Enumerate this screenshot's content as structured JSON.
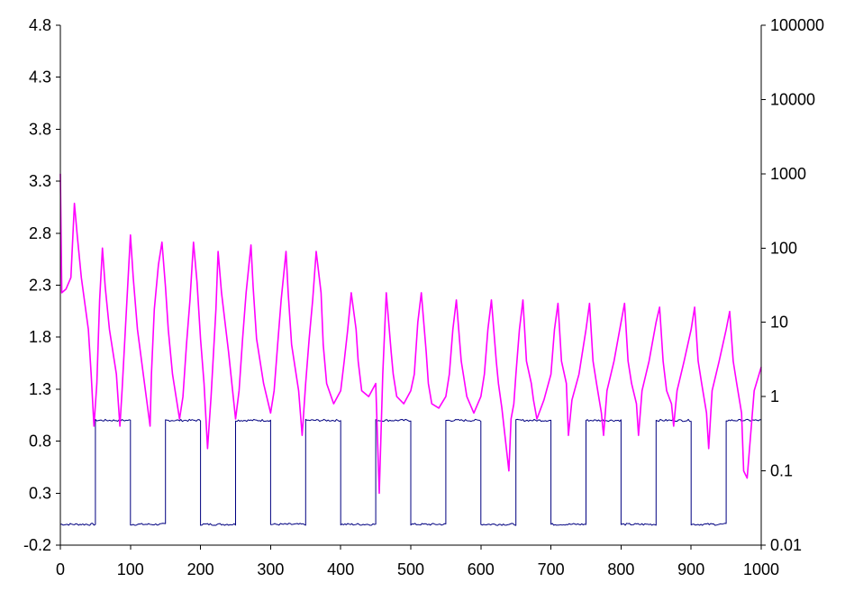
{
  "chart_data": {
    "type": "line",
    "title": "",
    "xlabel": "",
    "ylabel": "",
    "y2label": "",
    "grid": false,
    "legend": "none",
    "x_ticks": [
      "0",
      "100",
      "200",
      "300",
      "400",
      "500",
      "600",
      "700",
      "800",
      "900",
      "1000"
    ],
    "y_left_ticks": [
      "4.8",
      "4.3",
      "3.8",
      "3.3",
      "2.8",
      "2.3",
      "1.8",
      "1.3",
      "0.8",
      "0.3",
      "-0.2"
    ],
    "y_right_ticks": [
      "100000",
      "10000",
      "1000",
      "100",
      "10",
      "1",
      "0.1",
      "0.01"
    ],
    "xlim": [
      0,
      1000
    ],
    "ylim": [
      -0.2,
      4.8
    ],
    "y2lim": [
      0.01,
      100000
    ],
    "y2scale": "log",
    "series": [
      {
        "axis": "left",
        "color": "#000080",
        "style": "square-wave",
        "low": 0.0,
        "high": 1.0,
        "intervals_high": [
          [
            50,
            100
          ],
          [
            150,
            200
          ],
          [
            250,
            300
          ],
          [
            350,
            400
          ],
          [
            450,
            500
          ],
          [
            550,
            600
          ],
          [
            650,
            700
          ],
          [
            750,
            800
          ],
          [
            850,
            900
          ],
          [
            950,
            1000
          ]
        ]
      },
      {
        "axis": "right",
        "color": "#ff00ff",
        "style": "line",
        "x": [
          0,
          2,
          8,
          15,
          20,
          24,
          30,
          40,
          44,
          48,
          52,
          56,
          60,
          64,
          70,
          80,
          85,
          88,
          92,
          96,
          100,
          104,
          110,
          120,
          128,
          130,
          134,
          140,
          145,
          150,
          154,
          160,
          170,
          175,
          180,
          185,
          190,
          195,
          200,
          205,
          210,
          215,
          222,
          225,
          230,
          240,
          250,
          255,
          260,
          265,
          272,
          275,
          280,
          290,
          300,
          305,
          310,
          315,
          322,
          325,
          330,
          340,
          345,
          350,
          355,
          360,
          365,
          372,
          375,
          380,
          390,
          400,
          405,
          410,
          415,
          422,
          425,
          430,
          440,
          450,
          455,
          460,
          465,
          472,
          475,
          480,
          490,
          500,
          505,
          510,
          515,
          522,
          525,
          530,
          540,
          550,
          555,
          560,
          565,
          572,
          575,
          580,
          590,
          600,
          605,
          610,
          615,
          622,
          625,
          630,
          640,
          643,
          647,
          650,
          655,
          660,
          665,
          672,
          675,
          680,
          690,
          700,
          705,
          710,
          715,
          722,
          725,
          730,
          740,
          750,
          755,
          760,
          765,
          772,
          775,
          780,
          790,
          800,
          805,
          810,
          815,
          822,
          825,
          830,
          840,
          850,
          855,
          860,
          865,
          872,
          875,
          880,
          890,
          900,
          905,
          910,
          915,
          922,
          925,
          930,
          940,
          950,
          955,
          960,
          965,
          972,
          975,
          980,
          990,
          1000
        ],
        "y": [
          1000,
          25,
          28,
          40,
          400,
          150,
          40,
          8,
          2,
          0.4,
          1.5,
          20,
          100,
          30,
          8,
          2,
          0.4,
          1.2,
          6,
          30,
          150,
          40,
          8,
          1.5,
          0.4,
          2,
          15,
          60,
          120,
          30,
          8,
          2,
          0.5,
          1,
          5,
          20,
          120,
          35,
          6,
          1.5,
          0.2,
          1,
          15,
          90,
          25,
          4,
          0.5,
          1.2,
          6,
          25,
          110,
          30,
          6,
          1.5,
          0.6,
          1.2,
          5,
          20,
          90,
          25,
          5,
          1.2,
          0.3,
          1.5,
          6,
          20,
          90,
          25,
          5,
          1.5,
          0.8,
          1.2,
          3,
          8,
          25,
          8,
          3,
          1.2,
          1,
          1.5,
          0.05,
          2,
          25,
          4,
          2,
          1,
          0.8,
          1.2,
          2,
          10,
          25,
          4,
          1.5,
          0.8,
          0.7,
          1,
          2,
          8,
          20,
          3,
          2,
          1,
          0.6,
          1,
          2,
          8,
          20,
          3,
          1.5,
          0.7,
          0.1,
          0.5,
          0.8,
          2,
          8,
          20,
          3,
          1.5,
          0.9,
          0.5,
          0.9,
          2,
          8,
          18,
          3,
          1.5,
          0.3,
          0.9,
          2,
          8,
          18,
          3,
          1.5,
          0.6,
          0.3,
          1.2,
          3,
          10,
          18,
          3,
          1.5,
          0.8,
          0.3,
          1.2,
          3,
          10,
          16,
          3,
          1.2,
          0.8,
          0.4,
          1.2,
          3,
          8,
          16,
          3,
          1.5,
          0.6,
          0.2,
          1.2,
          3,
          8,
          14,
          3,
          1.5,
          0.6,
          0.1,
          0.08,
          1.2,
          2.5
        ]
      }
    ]
  }
}
